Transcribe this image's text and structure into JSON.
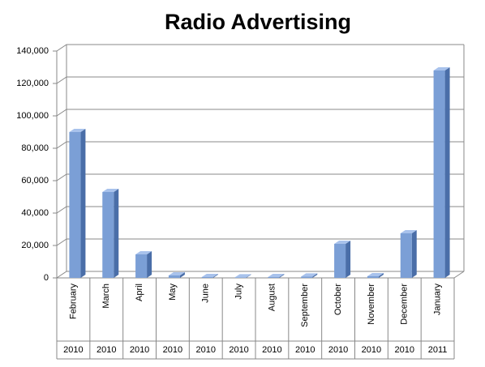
{
  "chart_data": {
    "type": "bar",
    "title": "Radio Advertising",
    "categories": [
      "February",
      "March",
      "April",
      "May",
      "June",
      "July",
      "August",
      "September",
      "October",
      "November",
      "December",
      "January"
    ],
    "years": [
      "2010",
      "2010",
      "2010",
      "2010",
      "2010",
      "2010",
      "2010",
      "2010",
      "2010",
      "2010",
      "2010",
      "2011"
    ],
    "values": [
      90000,
      53000,
      14500,
      1500,
      500,
      300,
      500,
      800,
      21000,
      1000,
      27500,
      128000
    ],
    "color": "#7b9fd6",
    "ylim": [
      0,
      140000
    ],
    "yticks": [
      0,
      {
        "value": 20000,
        "label": "20,000"
      },
      {
        "value": 40000,
        "label": "40,000"
      },
      {
        "value": 60000,
        "label": "60,000"
      },
      {
        "value": 80000,
        "label": "80,000"
      },
      {
        "value": 100000,
        "label": "100,000"
      },
      {
        "value": 120000,
        "label": "120,000"
      },
      {
        "value": 140000,
        "label": "140,000"
      }
    ],
    "grid": true
  }
}
